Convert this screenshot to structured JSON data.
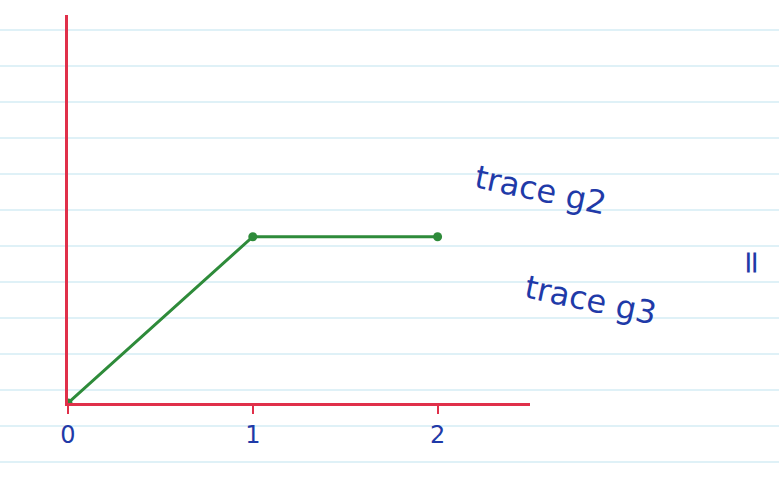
{
  "chart_data": {
    "type": "line",
    "x": [
      0,
      1,
      2
    ],
    "values": [
      0,
      0.9,
      0.9
    ],
    "color": "#2e8b3a",
    "marker": "circle",
    "xlim": [
      0,
      2.5
    ],
    "ylim": [
      0,
      2.1
    ],
    "xticks": [
      0,
      1,
      2
    ],
    "yticks": [],
    "tick_labels": "x",
    "grid": false,
    "annotations": [
      "trace g2",
      "=",
      "trace g3"
    ]
  }
}
